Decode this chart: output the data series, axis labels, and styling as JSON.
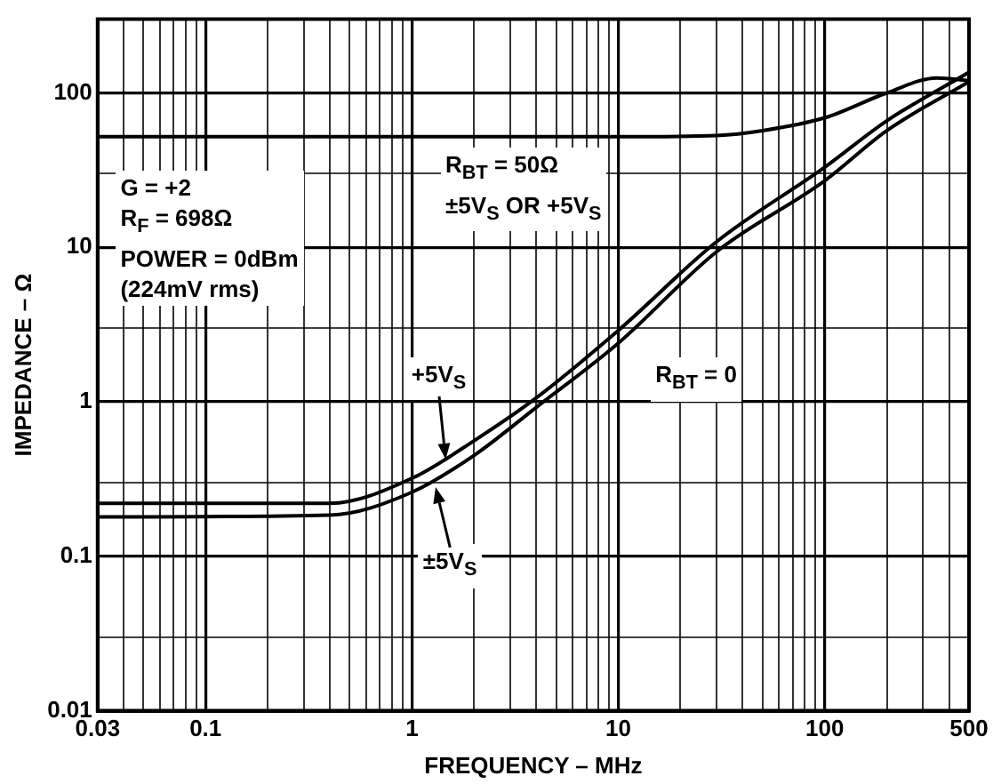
{
  "chart_data": {
    "type": "line",
    "xlabel": "FREQUENCY – MHz",
    "ylabel": "IMPEDANCE – Ω",
    "log": "xy",
    "grid": true,
    "legend": false,
    "marker": "none",
    "line_style": "solid",
    "xlim": [
      0.03,
      500
    ],
    "ylim": [
      0.01,
      300
    ],
    "xticks": [
      0.03,
      {
        "value": 0.04,
        "label": null
      },
      {
        "value": 0.05,
        "label": null
      },
      {
        "value": 0.06,
        "label": null
      },
      {
        "value": 0.07,
        "label": null
      },
      {
        "value": 0.08,
        "label": null
      },
      {
        "value": 0.09,
        "label": null
      },
      0.1,
      {
        "value": 0.2,
        "label": null
      },
      {
        "value": 0.3,
        "label": null
      },
      {
        "value": 0.4,
        "label": null
      },
      {
        "value": 0.5,
        "label": null
      },
      {
        "value": 0.6,
        "label": null
      },
      {
        "value": 0.7,
        "label": null
      },
      {
        "value": 0.8,
        "label": null
      },
      {
        "value": 0.9,
        "label": null
      },
      1,
      {
        "value": 2,
        "label": null
      },
      {
        "value": 3,
        "label": null
      },
      {
        "value": 4,
        "label": null
      },
      {
        "value": 5,
        "label": null
      },
      {
        "value": 6,
        "label": null
      },
      {
        "value": 7,
        "label": null
      },
      {
        "value": 8,
        "label": null
      },
      {
        "value": 9,
        "label": null
      },
      10,
      {
        "value": 20,
        "label": null
      },
      {
        "value": 30,
        "label": null
      },
      {
        "value": 40,
        "label": null
      },
      {
        "value": 50,
        "label": null
      },
      {
        "value": 60,
        "label": null
      },
      {
        "value": 70,
        "label": null
      },
      {
        "value": 80,
        "label": null
      },
      {
        "value": 90,
        "label": null
      },
      100,
      {
        "value": 200,
        "label": null
      },
      {
        "value": 300,
        "label": null
      },
      {
        "value": 400,
        "label": null
      },
      500
    ],
    "yticks": [
      0.01,
      {
        "value": 0.03,
        "label": null
      },
      0.1,
      {
        "value": 0.3,
        "label": null
      },
      1,
      {
        "value": 3,
        "label": null
      },
      10,
      {
        "value": 30,
        "label": null
      },
      100
    ],
    "series": [
      {
        "color": "#000000",
        "x": [
          0.03,
          1,
          10,
          30,
          50,
          100,
          200,
          350,
          500
        ],
        "values": [
          52,
          52,
          52,
          53,
          57,
          69,
          100,
          125,
          120
        ]
      },
      {
        "color": "#000000",
        "x": [
          0.03,
          0.4,
          1,
          2,
          4,
          10,
          30,
          100,
          200,
          500
        ],
        "values": [
          0.22,
          0.22,
          0.32,
          0.56,
          1.06,
          2.9,
          10.9,
          33,
          66,
          136
        ]
      },
      {
        "color": "#000000",
        "x": [
          0.03,
          0.4,
          1,
          2,
          4,
          10,
          30,
          100,
          200,
          500
        ],
        "values": [
          0.18,
          0.185,
          0.26,
          0.45,
          0.92,
          2.4,
          9.4,
          27,
          57,
          118
        ]
      }
    ],
    "annotations": [
      "G = +2\nR$_{F}$ = 698Ω\nPOWER = 0dBm\n(224mV rms)",
      {
        "text": "R$_{BT}$ = 50Ω\n±5V$_{S}$ OR +5V$_{S}$",
        "x": 4.5,
        "y": 52
      },
      "R$_{BT}$ = 0",
      {
        "text": "+5V$_{S}$",
        "x": 1.45,
        "y": 0.42
      },
      {
        "text": "±5V$_{S}$",
        "x": 1.3,
        "y": 0.28
      }
    ]
  }
}
